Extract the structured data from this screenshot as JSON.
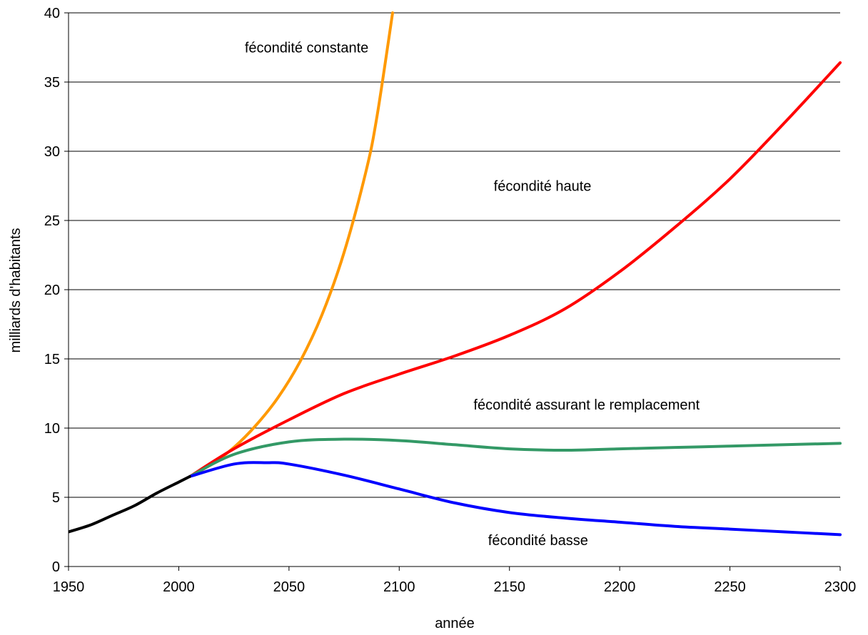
{
  "chart_data": {
    "type": "line",
    "xlabel": "année",
    "ylabel": "milliards d'habitants",
    "xlim": [
      1950,
      2300
    ],
    "ylim": [
      0,
      40
    ],
    "xticks": [
      "1950",
      "2000",
      "2050",
      "2100",
      "2150",
      "2200",
      "2250",
      "2300"
    ],
    "yticks": [
      "0",
      "5",
      "10",
      "15",
      "20",
      "25",
      "30",
      "35",
      "40"
    ],
    "grid": "horizontal",
    "legend": "none",
    "series": [
      {
        "name": "",
        "color": "#000000",
        "points": [
          [
            1950,
            2.5
          ],
          [
            1960,
            3.0
          ],
          [
            1970,
            3.7
          ],
          [
            1980,
            4.4
          ],
          [
            1990,
            5.3
          ],
          [
            2000,
            6.1
          ],
          [
            2005,
            6.5
          ]
        ]
      },
      {
        "name": "fécondité constante",
        "color": "#FF9900",
        "points": [
          [
            2005,
            6.5
          ],
          [
            2015,
            7.4
          ],
          [
            2025,
            8.6
          ],
          [
            2035,
            10.2
          ],
          [
            2045,
            12.2
          ],
          [
            2055,
            14.8
          ],
          [
            2065,
            18.2
          ],
          [
            2075,
            22.7
          ],
          [
            2085,
            28.6
          ],
          [
            2090,
            32.6
          ],
          [
            2097,
            40.0
          ]
        ]
      },
      {
        "name": "fécondité haute",
        "color": "#FF0000",
        "points": [
          [
            2005,
            6.5
          ],
          [
            2025,
            8.5
          ],
          [
            2050,
            10.6
          ],
          [
            2075,
            12.5
          ],
          [
            2100,
            13.9
          ],
          [
            2125,
            15.2
          ],
          [
            2150,
            16.7
          ],
          [
            2175,
            18.6
          ],
          [
            2200,
            21.3
          ],
          [
            2225,
            24.5
          ],
          [
            2250,
            28.0
          ],
          [
            2275,
            32.1
          ],
          [
            2300,
            36.4
          ]
        ]
      },
      {
        "name": "fécondité assurant le remplacement",
        "color": "#339966",
        "points": [
          [
            2005,
            6.5
          ],
          [
            2025,
            8.1
          ],
          [
            2050,
            9.0
          ],
          [
            2075,
            9.2
          ],
          [
            2100,
            9.1
          ],
          [
            2125,
            8.8
          ],
          [
            2150,
            8.5
          ],
          [
            2175,
            8.4
          ],
          [
            2200,
            8.5
          ],
          [
            2225,
            8.6
          ],
          [
            2250,
            8.7
          ],
          [
            2275,
            8.8
          ],
          [
            2300,
            8.9
          ]
        ]
      },
      {
        "name": "fécondité basse",
        "color": "#0000FF",
        "points": [
          [
            2005,
            6.5
          ],
          [
            2025,
            7.4
          ],
          [
            2040,
            7.5
          ],
          [
            2050,
            7.4
          ],
          [
            2075,
            6.6
          ],
          [
            2100,
            5.6
          ],
          [
            2125,
            4.6
          ],
          [
            2150,
            3.9
          ],
          [
            2175,
            3.5
          ],
          [
            2200,
            3.2
          ],
          [
            2225,
            2.9
          ],
          [
            2250,
            2.7
          ],
          [
            2275,
            2.5
          ],
          [
            2300,
            2.3
          ]
        ]
      }
    ],
    "annotations": [
      {
        "text": "fécondité constante",
        "x": 2058,
        "y": 37.5
      },
      {
        "text": "fécondité haute",
        "x": 2165,
        "y": 27.5
      },
      {
        "text": "fécondité assurant le remplacement",
        "x": 2185,
        "y": 11.7
      },
      {
        "text": "fécondité basse",
        "x": 2163,
        "y": 1.9
      }
    ]
  }
}
